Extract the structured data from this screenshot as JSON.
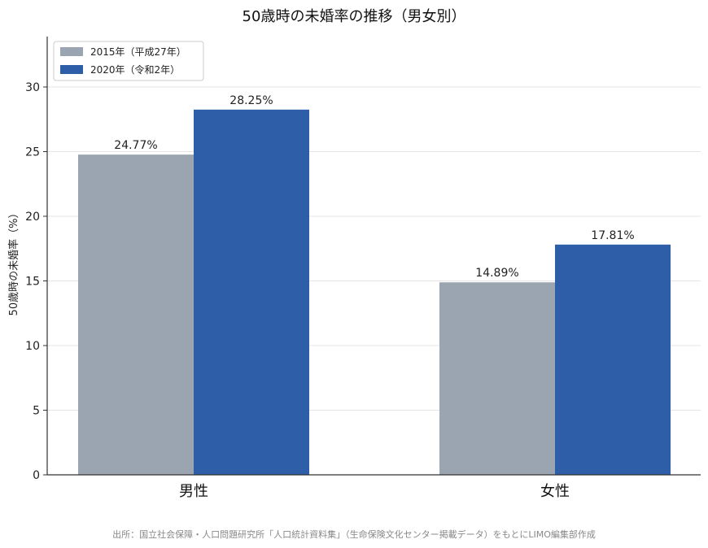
{
  "chart_data": {
    "type": "bar",
    "title": "50歳時の未婚率の推移（男女別）",
    "ylabel": "50歳時の未婚率（%）",
    "xlabel": "",
    "categories": [
      "男性",
      "女性"
    ],
    "series": [
      {
        "name": "2015年（平成27年）",
        "values": [
          24.77,
          14.89
        ],
        "labels": [
          "24.77%",
          "14.89%"
        ],
        "color": "#9aa5b1"
      },
      {
        "name": "2020年（令和2年）",
        "values": [
          28.25,
          17.81
        ],
        "labels": [
          "28.25%",
          "17.81%"
        ],
        "color": "#2e5ea8"
      }
    ],
    "ylim": [
      0,
      34
    ],
    "yticks": [
      0,
      5,
      10,
      15,
      20,
      25,
      30
    ],
    "grid": true,
    "legend_position": "top-left"
  },
  "source_note": "出所：国立社会保障・人口問題研究所「人口統計資料集」（生命保険文化センター掲載データ）をもとにLIMO編集部作成"
}
